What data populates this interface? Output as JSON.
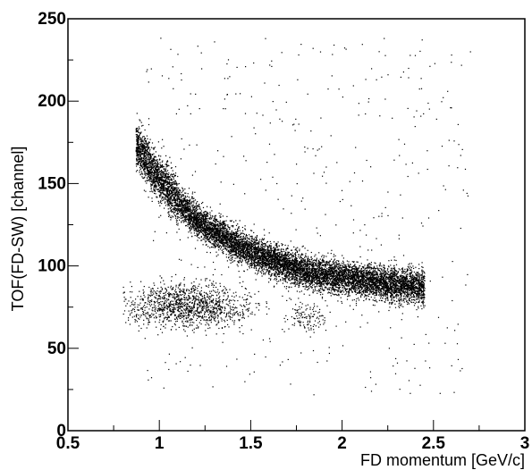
{
  "chart_data": {
    "type": "scatter",
    "title": "",
    "xlabel": "FD momentum [GeV/c]",
    "ylabel": "TOF(FD-SW) [channel]",
    "xlim": [
      0.5,
      3
    ],
    "ylim": [
      0,
      250
    ],
    "xticks": [
      "0.5",
      "1",
      "1.5",
      "2",
      "2.5",
      "3"
    ],
    "yticks": [
      "0",
      "50",
      "100",
      "150",
      "200",
      "250"
    ],
    "grid": false,
    "marker_color": "#000000",
    "components": [
      {
        "description": "main band (curved, dense)",
        "centerline": [
          {
            "x": 0.88,
            "y": 172
          },
          {
            "x": 1.0,
            "y": 152
          },
          {
            "x": 1.2,
            "y": 128
          },
          {
            "x": 1.4,
            "y": 114
          },
          {
            "x": 1.6,
            "y": 104
          },
          {
            "x": 1.8,
            "y": 97
          },
          {
            "x": 2.0,
            "y": 93
          },
          {
            "x": 2.2,
            "y": 90
          },
          {
            "x": 2.4,
            "y": 88
          }
        ],
        "x_range": [
          0.87,
          2.45
        ],
        "width_sigma": 5,
        "n_points": 10000
      },
      {
        "description": "lower cluster",
        "center": {
          "x": 1.15,
          "y": 76
        },
        "x_range": [
          0.85,
          1.55
        ],
        "y_range": [
          64,
          90
        ],
        "n_points": 1300
      },
      {
        "description": "lower cluster right tail",
        "center": {
          "x": 1.8,
          "y": 70
        },
        "x_range": [
          1.7,
          1.9
        ],
        "y_range": [
          62,
          80
        ],
        "n_points": 120
      },
      {
        "description": "diffuse background",
        "x_range": [
          0.9,
          2.7
        ],
        "y_range": [
          20,
          240
        ],
        "n_points": 450
      }
    ]
  }
}
